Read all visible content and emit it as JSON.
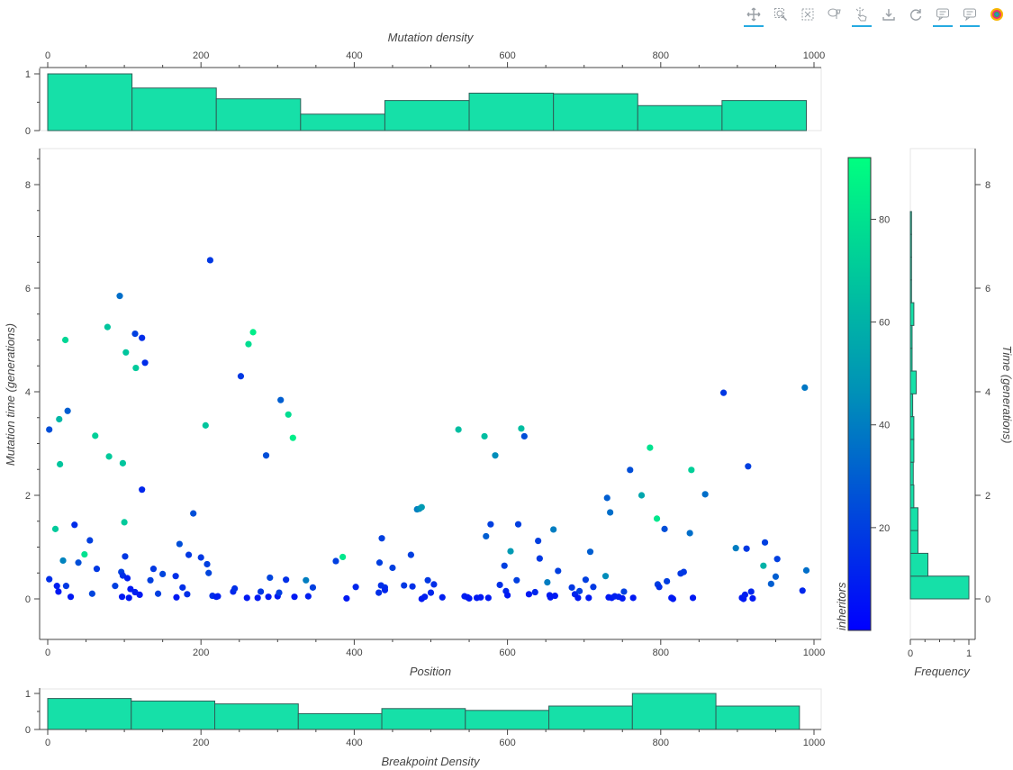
{
  "toolbar": {
    "tools": [
      {
        "name": "pan-tool-button",
        "icon": "pan-icon",
        "active": true
      },
      {
        "name": "box-zoom-tool-button",
        "icon": "box-zoom-icon",
        "active": false
      },
      {
        "name": "box-select-tool-button",
        "icon": "box-select-icon",
        "active": false
      },
      {
        "name": "lasso-select-tool-button",
        "icon": "lasso-icon",
        "active": false
      },
      {
        "name": "tap-tool-button",
        "icon": "tap-icon",
        "active": true
      },
      {
        "name": "save-tool-button",
        "icon": "save-icon",
        "active": false
      },
      {
        "name": "reset-tool-button",
        "icon": "reset-icon",
        "active": false
      },
      {
        "name": "hover-tool-button",
        "icon": "hover-icon",
        "active": true
      },
      {
        "name": "hover-tool-button-2",
        "icon": "hover-icon",
        "active": true
      },
      {
        "name": "bokeh-logo",
        "icon": "bokeh-logo-icon",
        "active": false
      }
    ]
  },
  "chart_data": [
    {
      "id": "mutation-density",
      "type": "bar",
      "title": "",
      "xlabel": "Mutation density",
      "ylabel": "",
      "xlim": [
        0,
        1000
      ],
      "ylim": [
        0,
        1
      ],
      "x_ticks": [
        "0",
        "200",
        "400",
        "600",
        "800",
        "1000"
      ],
      "y_ticks": [
        "0",
        "1"
      ],
      "bin_edges": [
        0,
        110,
        220,
        330,
        440,
        550,
        660,
        770,
        880,
        990
      ],
      "values": [
        1.0,
        0.75,
        0.56,
        0.29,
        0.53,
        0.66,
        0.65,
        0.44,
        0.53
      ],
      "color": "#16e0a8"
    },
    {
      "id": "mutations-scatter",
      "type": "scatter",
      "title": "",
      "xlabel": "Position",
      "ylabel": "Mutation time (generations)",
      "xlim": [
        -2,
        1010
      ],
      "ylim": [
        -0.8,
        8.6
      ],
      "x_ticks": [
        "0",
        "200",
        "400",
        "600",
        "800",
        "1000"
      ],
      "y_ticks": [
        "0",
        "2",
        "4",
        "6",
        "8"
      ],
      "colorbar": {
        "label": "inheritors",
        "range": [
          0,
          92
        ],
        "ticks": [
          "20",
          "40",
          "60",
          "80"
        ],
        "colors": [
          "#0000ff",
          "#00ff80"
        ]
      },
      "points": [
        [
          2,
          3.27,
          25
        ],
        [
          2,
          0.38,
          15
        ],
        [
          12,
          0.25,
          10
        ],
        [
          14,
          0.14,
          8
        ],
        [
          15,
          3.47,
          62
        ],
        [
          16,
          2.6,
          68
        ],
        [
          20,
          0.74,
          42
        ],
        [
          23,
          5.0,
          75
        ],
        [
          24,
          0.25,
          18
        ],
        [
          26,
          3.63,
          30
        ],
        [
          30,
          0.04,
          8
        ],
        [
          35,
          1.43,
          14
        ],
        [
          10,
          1.35,
          70
        ],
        [
          40,
          0.7,
          25
        ],
        [
          48,
          0.86,
          80
        ],
        [
          55,
          1.13,
          20
        ],
        [
          58,
          0.1,
          22
        ],
        [
          62,
          3.15,
          72
        ],
        [
          64,
          0.58,
          18
        ],
        [
          78,
          5.25,
          68
        ],
        [
          80,
          2.75,
          70
        ],
        [
          88,
          0.25,
          20
        ],
        [
          94,
          5.85,
          35
        ],
        [
          96,
          0.52,
          20
        ],
        [
          97,
          0.04,
          8
        ],
        [
          98,
          0.45,
          15
        ],
        [
          98,
          2.62,
          68
        ],
        [
          100,
          1.48,
          70
        ],
        [
          101,
          0.82,
          18
        ],
        [
          102,
          4.76,
          68
        ],
        [
          104,
          0.4,
          10
        ],
        [
          106,
          0.02,
          8
        ],
        [
          108,
          0.19,
          8
        ],
        [
          114,
          0.13,
          10
        ],
        [
          114,
          5.12,
          20
        ],
        [
          115,
          4.46,
          70
        ],
        [
          120,
          0.08,
          8
        ],
        [
          123,
          5.04,
          14
        ],
        [
          123,
          2.11,
          12
        ],
        [
          127,
          4.56,
          14
        ],
        [
          134,
          0.36,
          20
        ],
        [
          138,
          0.58,
          18
        ],
        [
          144,
          0.1,
          20
        ],
        [
          150,
          0.48,
          22
        ],
        [
          167,
          0.44,
          15
        ],
        [
          168,
          0.03,
          8
        ],
        [
          172,
          1.06,
          25
        ],
        [
          176,
          0.22,
          15
        ],
        [
          182,
          0.09,
          15
        ],
        [
          184,
          0.85,
          18
        ],
        [
          190,
          1.65,
          25
        ],
        [
          200,
          0.8,
          18
        ],
        [
          206,
          3.35,
          68
        ],
        [
          208,
          0.67,
          20
        ],
        [
          210,
          0.5,
          22
        ],
        [
          212,
          6.54,
          18
        ],
        [
          215,
          0.06,
          15
        ],
        [
          220,
          0.04,
          10
        ],
        [
          222,
          0.05,
          10
        ],
        [
          242,
          0.14,
          12
        ],
        [
          244,
          0.2,
          15
        ],
        [
          252,
          4.3,
          18
        ],
        [
          260,
          0.02,
          8
        ],
        [
          262,
          4.92,
          78
        ],
        [
          268,
          5.15,
          85
        ],
        [
          274,
          0.02,
          8
        ],
        [
          278,
          0.14,
          18
        ],
        [
          285,
          2.77,
          25
        ],
        [
          288,
          0.04,
          8
        ],
        [
          290,
          0.41,
          22
        ],
        [
          300,
          0.05,
          8
        ],
        [
          302,
          0.12,
          20
        ],
        [
          304,
          3.84,
          30
        ],
        [
          311,
          0.37,
          15
        ],
        [
          314,
          3.56,
          78
        ],
        [
          320,
          3.11,
          85
        ],
        [
          322,
          0.04,
          8
        ],
        [
          337,
          0.36,
          40
        ],
        [
          340,
          0.05,
          10
        ],
        [
          346,
          0.22,
          20
        ],
        [
          376,
          0.73,
          20
        ],
        [
          385,
          0.81,
          82
        ],
        [
          390,
          0.01,
          8
        ],
        [
          402,
          0.23,
          12
        ],
        [
          432,
          0.12,
          15
        ],
        [
          433,
          0.7,
          20
        ],
        [
          435,
          0.26,
          15
        ],
        [
          436,
          1.17,
          20
        ],
        [
          440,
          0.22,
          15
        ],
        [
          440,
          0.17,
          12
        ],
        [
          450,
          0.6,
          20
        ],
        [
          465,
          0.26,
          18
        ],
        [
          474,
          0.85,
          20
        ],
        [
          476,
          0.24,
          15
        ],
        [
          482,
          1.73,
          40
        ],
        [
          485,
          1.74,
          45
        ],
        [
          488,
          1.77,
          50
        ],
        [
          488,
          0.0,
          8
        ],
        [
          492,
          0.04,
          10
        ],
        [
          496,
          0.36,
          18
        ],
        [
          500,
          0.12,
          12
        ],
        [
          504,
          0.28,
          15
        ],
        [
          515,
          0.03,
          10
        ],
        [
          536,
          3.27,
          65
        ],
        [
          544,
          0.05,
          10
        ],
        [
          548,
          0.03,
          8
        ],
        [
          550,
          0.01,
          8
        ],
        [
          560,
          0.02,
          8
        ],
        [
          565,
          0.03,
          8
        ],
        [
          570,
          3.14,
          65
        ],
        [
          572,
          1.21,
          30
        ],
        [
          575,
          0.02,
          8
        ],
        [
          578,
          1.44,
          20
        ],
        [
          584,
          2.77,
          45
        ],
        [
          590,
          0.27,
          15
        ],
        [
          596,
          0.64,
          20
        ],
        [
          598,
          0.15,
          12
        ],
        [
          600,
          0.07,
          8
        ],
        [
          604,
          0.92,
          50
        ],
        [
          612,
          0.36,
          20
        ],
        [
          614,
          1.44,
          20
        ],
        [
          618,
          3.29,
          65
        ],
        [
          622,
          3.14,
          25
        ],
        [
          628,
          0.09,
          8
        ],
        [
          636,
          0.13,
          12
        ],
        [
          640,
          1.12,
          20
        ],
        [
          642,
          0.78,
          18
        ],
        [
          652,
          0.32,
          40
        ],
        [
          655,
          0.07,
          10
        ],
        [
          656,
          0.03,
          8
        ],
        [
          660,
          1.34,
          40
        ],
        [
          662,
          0.06,
          8
        ],
        [
          666,
          0.54,
          20
        ],
        [
          684,
          0.22,
          18
        ],
        [
          688,
          0.09,
          12
        ],
        [
          692,
          0.02,
          8
        ],
        [
          694,
          0.15,
          20
        ],
        [
          702,
          0.37,
          20
        ],
        [
          706,
          0.02,
          8
        ],
        [
          708,
          0.91,
          30
        ],
        [
          712,
          0.23,
          18
        ],
        [
          728,
          0.44,
          45
        ],
        [
          730,
          1.95,
          30
        ],
        [
          732,
          0.03,
          8
        ],
        [
          734,
          1.67,
          35
        ],
        [
          736,
          0.02,
          8
        ],
        [
          740,
          0.05,
          10
        ],
        [
          745,
          0.04,
          10
        ],
        [
          750,
          0.01,
          8
        ],
        [
          752,
          0.14,
          20
        ],
        [
          760,
          2.49,
          25
        ],
        [
          764,
          0.02,
          8
        ],
        [
          775,
          2.0,
          55
        ],
        [
          786,
          2.92,
          80
        ],
        [
          795,
          1.55,
          82
        ],
        [
          796,
          0.28,
          20
        ],
        [
          798,
          0.23,
          15
        ],
        [
          805,
          1.35,
          25
        ],
        [
          808,
          0.34,
          20
        ],
        [
          814,
          0.02,
          8
        ],
        [
          816,
          0.0,
          8
        ],
        [
          826,
          0.49,
          18
        ],
        [
          830,
          0.52,
          18
        ],
        [
          838,
          1.27,
          35
        ],
        [
          840,
          2.49,
          72
        ],
        [
          842,
          0.02,
          8
        ],
        [
          858,
          2.02,
          35
        ],
        [
          882,
          3.98,
          18
        ],
        [
          898,
          0.98,
          40
        ],
        [
          906,
          0.02,
          8
        ],
        [
          908,
          0.0,
          8
        ],
        [
          910,
          0.08,
          10
        ],
        [
          912,
          0.97,
          18
        ],
        [
          914,
          2.56,
          20
        ],
        [
          918,
          0.14,
          12
        ],
        [
          920,
          0.01,
          8
        ],
        [
          934,
          0.64,
          60
        ],
        [
          936,
          1.09,
          20
        ],
        [
          944,
          0.29,
          30
        ],
        [
          950,
          0.43,
          30
        ],
        [
          952,
          0.77,
          20
        ],
        [
          985,
          0.16,
          12
        ],
        [
          988,
          4.08,
          38
        ],
        [
          990,
          0.55,
          35
        ]
      ],
      "color": "#2860e0"
    },
    {
      "id": "time-frequency",
      "type": "bar",
      "orientation": "horizontal",
      "title": "",
      "xlabel": "Frequency",
      "ylabel": "Time (generations)",
      "xlim": [
        0,
        1
      ],
      "ylim": [
        -0.8,
        8.6
      ],
      "x_ticks": [
        "0",
        "1"
      ],
      "y_ticks": [
        "0",
        "2",
        "4",
        "6",
        "8"
      ],
      "bin_edges": [
        0,
        0.44,
        0.88,
        1.32,
        1.76,
        2.2,
        2.64,
        3.08,
        3.52,
        3.96,
        4.4,
        4.84,
        5.28,
        5.72,
        6.16,
        6.6,
        7.04,
        7.48
      ],
      "values": [
        1.0,
        0.3,
        0.13,
        0.13,
        0.06,
        0.05,
        0.06,
        0.06,
        0.04,
        0.1,
        0.03,
        0.03,
        0.06,
        0.02,
        0.02,
        0.02,
        0.02
      ],
      "color": "#16e0a8"
    },
    {
      "id": "breakpoint-density",
      "type": "bar",
      "title": "",
      "xlabel": "Breakpoint Density",
      "ylabel": "",
      "xlim": [
        0,
        1000
      ],
      "ylim": [
        0,
        1
      ],
      "x_ticks": [
        "0",
        "200",
        "400",
        "600",
        "800",
        "1000"
      ],
      "y_ticks": [
        "0",
        "1"
      ],
      "bin_edges": [
        0,
        109,
        218,
        327,
        436,
        545,
        654,
        763,
        872,
        981
      ],
      "values": [
        0.86,
        0.79,
        0.71,
        0.44,
        0.58,
        0.53,
        0.65,
        1.0,
        0.65
      ],
      "color": "#16e0a8"
    }
  ]
}
